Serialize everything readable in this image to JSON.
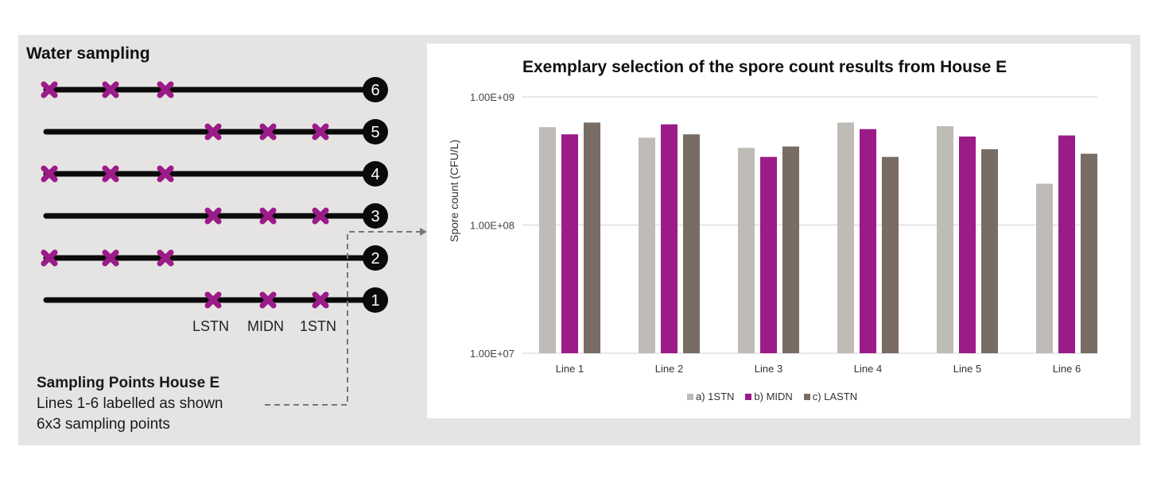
{
  "left_panel": {
    "title": "Water sampling",
    "lines": [
      {
        "label": "6",
        "markers": "start"
      },
      {
        "label": "5",
        "markers": "end"
      },
      {
        "label": "4",
        "markers": "start"
      },
      {
        "label": "3",
        "markers": "end"
      },
      {
        "label": "2",
        "markers": "start"
      },
      {
        "label": "1",
        "markers": "end"
      }
    ],
    "point_labels": [
      "LSTN",
      "MIDN",
      "1STN"
    ],
    "caption": {
      "heading": "Sampling Points House E",
      "line1": "Lines 1-6 labelled as shown",
      "line2": "6x3 sampling points"
    },
    "colors": {
      "marker": "#9b1b88",
      "line": "#0a0a0a"
    }
  },
  "chart_data": {
    "type": "bar",
    "title": "Exemplary selection of the spore count results from House E",
    "xlabel": "",
    "ylabel": "Spore count (CFU/L)",
    "yscale": "log",
    "ylim": [
      10000000,
      1000000000
    ],
    "yticks": [
      "1.00E+07",
      "1.00E+08",
      "1.00E+09"
    ],
    "grid": true,
    "legend_position": "bottom",
    "categories": [
      "Line 1",
      "Line 2",
      "Line 3",
      "Line 4",
      "Line 5",
      "Line 6"
    ],
    "series": [
      {
        "name": "a) 1STN",
        "color": "#bfbbb6",
        "values": [
          580000000,
          480000000,
          400000000,
          630000000,
          590000000,
          210000000
        ]
      },
      {
        "name": "b) MIDN",
        "color": "#9b1b88",
        "values": [
          510000000,
          610000000,
          340000000,
          560000000,
          490000000,
          500000000
        ]
      },
      {
        "name": "c) LASTN",
        "color": "#786c64",
        "values": [
          630000000,
          510000000,
          410000000,
          340000000,
          390000000,
          360000000
        ]
      }
    ]
  }
}
